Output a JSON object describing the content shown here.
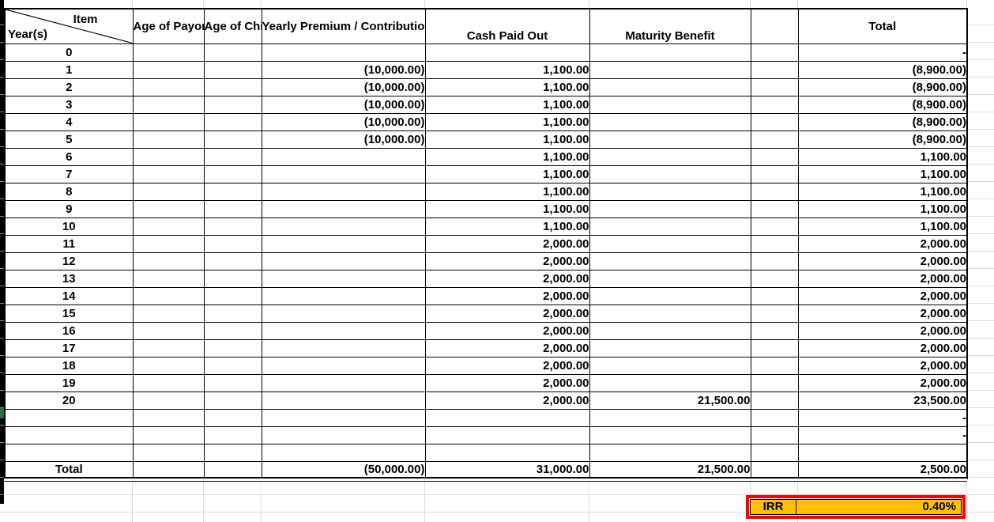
{
  "sheet": {
    "corner": {
      "item": "Item",
      "years": "Year(s)"
    },
    "headers": {
      "payor": "Age of Payor",
      "child": "Age of Child",
      "premium": "Yearly Premium / Contribution",
      "cash": "Cash Paid Out",
      "maturity": "Maturity Benefit",
      "spacer": "",
      "total": "Total"
    },
    "rows": [
      {
        "year": "0",
        "premium": "",
        "cash": "",
        "maturity": "",
        "total": "-"
      },
      {
        "year": "1",
        "premium": "(10,000.00)",
        "cash": "1,100.00",
        "maturity": "",
        "total": "(8,900.00)"
      },
      {
        "year": "2",
        "premium": "(10,000.00)",
        "cash": "1,100.00",
        "maturity": "",
        "total": "(8,900.00)"
      },
      {
        "year": "3",
        "premium": "(10,000.00)",
        "cash": "1,100.00",
        "maturity": "",
        "total": "(8,900.00)"
      },
      {
        "year": "4",
        "premium": "(10,000.00)",
        "cash": "1,100.00",
        "maturity": "",
        "total": "(8,900.00)"
      },
      {
        "year": "5",
        "premium": "(10,000.00)",
        "cash": "1,100.00",
        "maturity": "",
        "total": "(8,900.00)"
      },
      {
        "year": "6",
        "premium": "",
        "cash": "1,100.00",
        "maturity": "",
        "total": "1,100.00"
      },
      {
        "year": "7",
        "premium": "",
        "cash": "1,100.00",
        "maturity": "",
        "total": "1,100.00"
      },
      {
        "year": "8",
        "premium": "",
        "cash": "1,100.00",
        "maturity": "",
        "total": "1,100.00"
      },
      {
        "year": "9",
        "premium": "",
        "cash": "1,100.00",
        "maturity": "",
        "total": "1,100.00"
      },
      {
        "year": "10",
        "premium": "",
        "cash": "1,100.00",
        "maturity": "",
        "total": "1,100.00"
      },
      {
        "year": "11",
        "premium": "",
        "cash": "2,000.00",
        "maturity": "",
        "total": "2,000.00"
      },
      {
        "year": "12",
        "premium": "",
        "cash": "2,000.00",
        "maturity": "",
        "total": "2,000.00"
      },
      {
        "year": "13",
        "premium": "",
        "cash": "2,000.00",
        "maturity": "",
        "total": "2,000.00"
      },
      {
        "year": "14",
        "premium": "",
        "cash": "2,000.00",
        "maturity": "",
        "total": "2,000.00"
      },
      {
        "year": "15",
        "premium": "",
        "cash": "2,000.00",
        "maturity": "",
        "total": "2,000.00"
      },
      {
        "year": "16",
        "premium": "",
        "cash": "2,000.00",
        "maturity": "",
        "total": "2,000.00"
      },
      {
        "year": "17",
        "premium": "",
        "cash": "2,000.00",
        "maturity": "",
        "total": "2,000.00"
      },
      {
        "year": "18",
        "premium": "",
        "cash": "2,000.00",
        "maturity": "",
        "total": "2,000.00"
      },
      {
        "year": "19",
        "premium": "",
        "cash": "2,000.00",
        "maturity": "",
        "total": "2,000.00"
      },
      {
        "year": "20",
        "premium": "",
        "cash": "2,000.00",
        "maturity": "21,500.00",
        "total": "23,500.00"
      }
    ],
    "blank_rows": [
      {
        "total": "-"
      },
      {
        "total": "-"
      },
      {
        "total": ""
      }
    ],
    "total_row": {
      "label": "Total",
      "premium": "(50,000.00)",
      "cash": "31,000.00",
      "maturity": "21,500.00",
      "total": "2,500.00"
    },
    "irr": {
      "label": "IRR",
      "value": "0.40%"
    }
  },
  "colors": {
    "peach": "#FCD3AC",
    "gold": "#FFC000",
    "red": "#FF0000",
    "green_marker": "#2E6B44"
  }
}
